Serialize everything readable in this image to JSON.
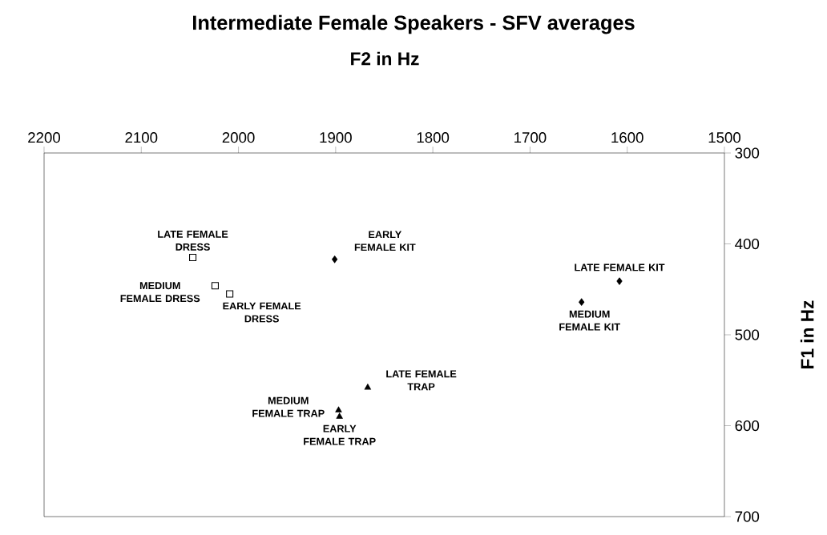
{
  "chart_data": {
    "type": "scatter",
    "title": "Intermediate Female Speakers - SFV averages",
    "xlabel": "F2 in Hz",
    "ylabel": "F1 in Hz",
    "series": [
      {
        "color": "#000000",
        "marker": "square",
        "x": [
          2047,
          2024,
          2009
        ],
        "values": [
          415,
          446,
          455
        ]
      },
      {
        "color": "#000000",
        "marker": "diamond",
        "x": [
          1901,
          1608,
          1647
        ],
        "values": [
          417,
          441,
          464
        ]
      },
      {
        "color": "#000000",
        "marker": "triangle",
        "x": [
          1867,
          1897,
          1896
        ],
        "values": [
          558,
          583,
          590
        ]
      }
    ],
    "xlim": [
      2200,
      1500
    ],
    "ylim": [
      700,
      300
    ],
    "xticks": [
      2200,
      2100,
      2000,
      1900,
      1800,
      1700,
      1600,
      1500
    ],
    "yticks": [
      300,
      400,
      500,
      600,
      700
    ],
    "annotations": [
      {
        "text": "LATE FEMALE DRESS",
        "x": 2047,
        "y": 415
      },
      {
        "text": "MEDIUM FEMALE DRESS",
        "x": 2024,
        "y": 446
      },
      {
        "text": "EARLY FEMALE DRESS",
        "x": 2009,
        "y": 455
      },
      {
        "text": "EARLY FEMALE KIT",
        "x": 1901,
        "y": 417
      },
      {
        "text": "LATE FEMALE KIT",
        "x": 1608,
        "y": 441
      },
      {
        "text": "MEDIUM FEMALE KIT",
        "x": 1647,
        "y": 464
      },
      {
        "text": "LATE FEMALE TRAP",
        "x": 1867,
        "y": 558
      },
      {
        "text": "MEDIUM FEMALE TRAP",
        "x": 1897,
        "y": 583
      },
      {
        "text": "EARLY FEMALE TRAP",
        "x": 1896,
        "y": 590
      }
    ]
  }
}
